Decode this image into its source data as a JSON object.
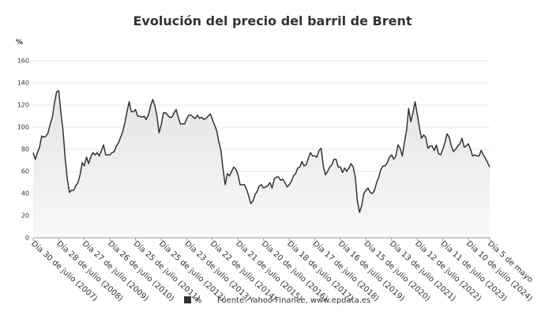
{
  "chart_data": {
    "type": "line",
    "title": "Evolución del precio del barril de Brent",
    "y_label": "%",
    "source": "Fuente: Yahoo Finance, www.epdata.es",
    "series": [
      {
        "name": "%",
        "color": "#333333",
        "values": [
          77,
          71,
          77,
          82,
          92,
          91,
          92,
          95,
          103,
          109,
          122,
          132,
          133,
          113,
          97,
          72,
          53,
          41,
          43,
          43,
          47,
          50,
          57,
          68,
          65,
          73,
          67,
          73,
          77,
          75,
          77,
          74,
          79,
          84,
          75,
          75,
          75,
          77,
          78,
          83,
          86,
          91,
          96,
          104,
          114,
          123,
          114,
          114,
          116,
          110,
          110,
          109,
          110,
          107,
          111,
          119,
          125,
          120,
          110,
          95,
          102,
          113,
          113,
          111,
          109,
          109,
          113,
          116,
          109,
          103,
          103,
          103,
          108,
          111,
          111,
          109,
          108,
          111,
          108,
          109,
          107,
          108,
          110,
          112,
          107,
          102,
          97,
          87,
          79,
          62,
          48,
          58,
          56,
          60,
          64,
          62,
          57,
          48,
          48,
          48,
          44,
          38,
          31,
          33,
          39,
          42,
          47,
          48,
          45,
          46,
          47,
          50,
          45,
          53,
          55,
          55,
          52,
          53,
          50,
          46,
          48,
          51,
          56,
          58,
          63,
          64,
          69,
          65,
          66,
          72,
          77,
          74,
          74,
          73,
          79,
          81,
          65,
          57,
          60,
          64,
          66,
          71,
          71,
          64,
          64,
          59,
          63,
          60,
          63,
          67,
          64,
          55,
          33,
          23,
          29,
          40,
          43,
          45,
          41,
          40,
          43,
          50,
          55,
          62,
          65,
          65,
          68,
          73,
          75,
          71,
          74,
          84,
          81,
          74,
          86,
          97,
          117,
          105,
          113,
          123,
          112,
          100,
          90,
          93,
          91,
          81,
          83,
          83,
          79,
          84,
          76,
          75,
          80,
          86,
          94,
          91,
          83,
          78,
          80,
          83,
          85,
          90,
          82,
          83,
          85,
          80,
          74,
          75,
          74,
          74,
          79,
          75,
          72,
          68,
          64
        ]
      }
    ],
    "categories": [
      "Día 30 de julio (2007)",
      null,
      null,
      null,
      null,
      null,
      null,
      null,
      null,
      null,
      null,
      null,
      "Día 28 de julio (2008)",
      null,
      null,
      null,
      null,
      null,
      null,
      null,
      null,
      null,
      null,
      null,
      "Día 27 de julio (2009)",
      null,
      null,
      null,
      null,
      null,
      null,
      null,
      null,
      null,
      null,
      null,
      "Día 26 de julio (2010)",
      null,
      null,
      null,
      null,
      null,
      null,
      null,
      null,
      null,
      null,
      null,
      "Día 25 de julio (2011)",
      null,
      null,
      null,
      null,
      null,
      null,
      null,
      null,
      null,
      null,
      null,
      "Día 25 de julio (2012)",
      null,
      null,
      null,
      null,
      null,
      null,
      null,
      null,
      null,
      null,
      null,
      "Día 23 de julio (2013)",
      null,
      null,
      null,
      null,
      null,
      null,
      null,
      null,
      null,
      null,
      null,
      "Día 22 de julio (2014)",
      null,
      null,
      null,
      null,
      null,
      null,
      null,
      null,
      null,
      null,
      null,
      "Día 21 de julio (2015)",
      null,
      null,
      null,
      null,
      null,
      null,
      null,
      null,
      null,
      null,
      null,
      "Día 20 de julio (2016)",
      null,
      null,
      null,
      null,
      null,
      null,
      null,
      null,
      null,
      null,
      null,
      "Día 18 de julio (2017)",
      null,
      null,
      null,
      null,
      null,
      null,
      null,
      null,
      null,
      null,
      null,
      "Día 17 de julio (2018)",
      null,
      null,
      null,
      null,
      null,
      null,
      null,
      null,
      null,
      null,
      null,
      "Día 16 de julio (2019)",
      null,
      null,
      null,
      null,
      null,
      null,
      null,
      null,
      null,
      null,
      null,
      "Día 15 de julio (2020)",
      null,
      null,
      null,
      null,
      null,
      null,
      null,
      null,
      null,
      null,
      null,
      "Día 13 de julio (2021)",
      null,
      null,
      null,
      null,
      null,
      null,
      null,
      null,
      null,
      null,
      null,
      "Día 12 de julio (2022)",
      null,
      null,
      null,
      null,
      null,
      null,
      null,
      null,
      null,
      null,
      null,
      "Día 11 de julio (2023)",
      null,
      null,
      null,
      null,
      null,
      null,
      null,
      null,
      null,
      null,
      null,
      "Día 10 de julio (2024)",
      null,
      null,
      null,
      null,
      null,
      null,
      null,
      null,
      null,
      "Día 5 de mayo"
    ],
    "ylim": [
      0,
      170
    ],
    "yticks": [
      0,
      20,
      40,
      60,
      80,
      100,
      120,
      140,
      160
    ],
    "grid": true
  }
}
